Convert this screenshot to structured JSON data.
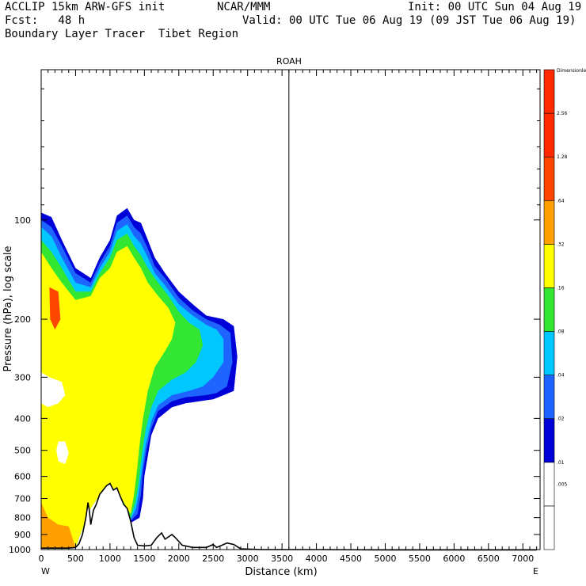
{
  "header": {
    "line1_left": "ACCLIP 15km ARW-GFS init",
    "line1_center": "NCAR/MMM",
    "line1_right": "Init: 00 UTC Sun 04 Aug 19",
    "line2_left": "Fcst:   48 h",
    "line2_right": "Valid: 00 UTC Tue 06 Aug 19 (09 JST Tue 06 Aug 19)",
    "line3_left": "Boundary Layer Tracer  Tibet Region"
  },
  "chart_data": {
    "type": "heatmap",
    "plot_type": "vertical cross-section, filled contours",
    "title": "ROAH",
    "xlabel": "Distance (km)",
    "ylabel": "Pressure (hPa), log scale",
    "x_left_label": "W",
    "x_right_label": "E",
    "xlim": [
      0,
      7250
    ],
    "ylim_hpa": [
      1000,
      35
    ],
    "y_scale": "log",
    "x_ticks": [
      0,
      500,
      1000,
      1500,
      2000,
      2500,
      3000,
      3500,
      4000,
      4500,
      5000,
      5500,
      6000,
      6500,
      7000
    ],
    "y_ticks": [
      100,
      200,
      300,
      400,
      500,
      600,
      700,
      800,
      900,
      1000
    ],
    "marker_line_km": 3600,
    "colorbar": {
      "units_label": "Dimensionless",
      "levels": [
        ".005",
        ".01",
        ".02",
        ".04",
        ".08",
        ".16",
        ".32",
        ".64",
        "1.28",
        "2.56"
      ],
      "colors": [
        "#ffffff",
        "#0000d8",
        "#1e64ff",
        "#00c8ff",
        "#32e632",
        "#ffff00",
        "#ffa000",
        "#ff4600"
      ]
    },
    "terrain_surface": [
      {
        "km": 0,
        "hpa": 990
      },
      {
        "km": 100,
        "hpa": 990
      },
      {
        "km": 250,
        "hpa": 990
      },
      {
        "km": 400,
        "hpa": 990
      },
      {
        "km": 500,
        "hpa": 985
      },
      {
        "km": 550,
        "hpa": 960
      },
      {
        "km": 600,
        "hpa": 900
      },
      {
        "km": 650,
        "hpa": 800
      },
      {
        "km": 680,
        "hpa": 720
      },
      {
        "km": 700,
        "hpa": 760
      },
      {
        "km": 720,
        "hpa": 840
      },
      {
        "km": 760,
        "hpa": 760
      },
      {
        "km": 800,
        "hpa": 730
      },
      {
        "km": 850,
        "hpa": 680
      },
      {
        "km": 900,
        "hpa": 660
      },
      {
        "km": 950,
        "hpa": 640
      },
      {
        "km": 1000,
        "hpa": 630
      },
      {
        "km": 1050,
        "hpa": 660
      },
      {
        "km": 1100,
        "hpa": 650
      },
      {
        "km": 1150,
        "hpa": 690
      },
      {
        "km": 1200,
        "hpa": 730
      },
      {
        "km": 1250,
        "hpa": 750
      },
      {
        "km": 1300,
        "hpa": 820
      },
      {
        "km": 1350,
        "hpa": 920
      },
      {
        "km": 1400,
        "hpa": 970
      },
      {
        "km": 1500,
        "hpa": 975
      },
      {
        "km": 1600,
        "hpa": 970
      },
      {
        "km": 1680,
        "hpa": 920
      },
      {
        "km": 1750,
        "hpa": 890
      },
      {
        "km": 1800,
        "hpa": 930
      },
      {
        "km": 1900,
        "hpa": 900
      },
      {
        "km": 1950,
        "hpa": 920
      },
      {
        "km": 2050,
        "hpa": 970
      },
      {
        "km": 2200,
        "hpa": 985
      },
      {
        "km": 2400,
        "hpa": 985
      },
      {
        "km": 2500,
        "hpa": 965
      },
      {
        "km": 2550,
        "hpa": 985
      },
      {
        "km": 2650,
        "hpa": 965
      },
      {
        "km": 2700,
        "hpa": 955
      },
      {
        "km": 2800,
        "hpa": 965
      },
      {
        "km": 2900,
        "hpa": 995
      },
      {
        "km": 3200,
        "hpa": 1000
      },
      {
        "km": 4000,
        "hpa": 1000
      },
      {
        "km": 5000,
        "hpa": 1003
      },
      {
        "km": 6000,
        "hpa": 1003
      },
      {
        "km": 7200,
        "hpa": 1003
      }
    ],
    "tracer_regions": [
      {
        "level": ".01",
        "color": "#0000d8",
        "pts": [
          [
            0,
            985
          ],
          [
            0,
            95
          ],
          [
            150,
            98
          ],
          [
            300,
            115
          ],
          [
            500,
            140
          ],
          [
            720,
            150
          ],
          [
            850,
            130
          ],
          [
            1000,
            115
          ],
          [
            1100,
            97
          ],
          [
            1250,
            92
          ],
          [
            1350,
            100
          ],
          [
            1450,
            102
          ],
          [
            1550,
            115
          ],
          [
            1650,
            130
          ],
          [
            1800,
            145
          ],
          [
            2000,
            165
          ],
          [
            2200,
            180
          ],
          [
            2400,
            195
          ],
          [
            2650,
            200
          ],
          [
            2800,
            210
          ],
          [
            2850,
            260
          ],
          [
            2800,
            330
          ],
          [
            2650,
            340
          ],
          [
            2500,
            350
          ],
          [
            2100,
            360
          ],
          [
            1900,
            370
          ],
          [
            1700,
            400
          ],
          [
            1600,
            450
          ],
          [
            1550,
            520
          ],
          [
            1500,
            600
          ],
          [
            1480,
            700
          ],
          [
            1430,
            800
          ],
          [
            1300,
            830
          ],
          [
            1150,
            690
          ],
          [
            900,
            660
          ],
          [
            700,
            760
          ],
          [
            500,
            985
          ]
        ]
      },
      {
        "level": ".02",
        "color": "#1e64ff",
        "pts": [
          [
            0,
            985
          ],
          [
            0,
            100
          ],
          [
            150,
            105
          ],
          [
            300,
            120
          ],
          [
            500,
            145
          ],
          [
            720,
            155
          ],
          [
            850,
            135
          ],
          [
            1000,
            120
          ],
          [
            1100,
            102
          ],
          [
            1250,
            97
          ],
          [
            1350,
            105
          ],
          [
            1450,
            110
          ],
          [
            1550,
            122
          ],
          [
            1650,
            138
          ],
          [
            1800,
            150
          ],
          [
            2000,
            172
          ],
          [
            2200,
            188
          ],
          [
            2400,
            200
          ],
          [
            2600,
            208
          ],
          [
            2750,
            220
          ],
          [
            2780,
            270
          ],
          [
            2700,
            320
          ],
          [
            2550,
            335
          ],
          [
            2400,
            340
          ],
          [
            2100,
            345
          ],
          [
            1900,
            355
          ],
          [
            1700,
            380
          ],
          [
            1600,
            430
          ],
          [
            1530,
            500
          ],
          [
            1480,
            580
          ],
          [
            1450,
            680
          ],
          [
            1400,
            780
          ],
          [
            1300,
            820
          ],
          [
            1150,
            690
          ],
          [
            900,
            660
          ],
          [
            700,
            760
          ],
          [
            500,
            985
          ]
        ]
      },
      {
        "level": ".04",
        "color": "#00c8ff",
        "pts": [
          [
            0,
            985
          ],
          [
            0,
            105
          ],
          [
            150,
            112
          ],
          [
            300,
            130
          ],
          [
            500,
            155
          ],
          [
            720,
            160
          ],
          [
            850,
            140
          ],
          [
            1000,
            125
          ],
          [
            1100,
            108
          ],
          [
            1250,
            103
          ],
          [
            1350,
            112
          ],
          [
            1450,
            118
          ],
          [
            1550,
            130
          ],
          [
            1650,
            145
          ],
          [
            1800,
            158
          ],
          [
            2000,
            180
          ],
          [
            2200,
            195
          ],
          [
            2400,
            208
          ],
          [
            2550,
            215
          ],
          [
            2650,
            230
          ],
          [
            2650,
            270
          ],
          [
            2500,
            300
          ],
          [
            2350,
            320
          ],
          [
            2150,
            330
          ],
          [
            1900,
            340
          ],
          [
            1700,
            365
          ],
          [
            1600,
            410
          ],
          [
            1520,
            480
          ],
          [
            1470,
            560
          ],
          [
            1430,
            650
          ],
          [
            1380,
            750
          ],
          [
            1300,
            810
          ],
          [
            1150,
            690
          ],
          [
            900,
            660
          ],
          [
            700,
            760
          ],
          [
            500,
            985
          ]
        ]
      },
      {
        "level": ".08",
        "color": "#32e632",
        "pts": [
          [
            0,
            985
          ],
          [
            0,
            115
          ],
          [
            150,
            125
          ],
          [
            300,
            140
          ],
          [
            500,
            165
          ],
          [
            720,
            165
          ],
          [
            850,
            145
          ],
          [
            1000,
            130
          ],
          [
            1100,
            115
          ],
          [
            1250,
            110
          ],
          [
            1350,
            120
          ],
          [
            1450,
            128
          ],
          [
            1550,
            140
          ],
          [
            1700,
            155
          ],
          [
            1850,
            170
          ],
          [
            2000,
            190
          ],
          [
            2150,
            205
          ],
          [
            2300,
            215
          ],
          [
            2350,
            240
          ],
          [
            2250,
            270
          ],
          [
            2100,
            290
          ],
          [
            1900,
            305
          ],
          [
            1700,
            330
          ],
          [
            1600,
            370
          ],
          [
            1520,
            430
          ],
          [
            1460,
            520
          ],
          [
            1420,
            620
          ],
          [
            1370,
            720
          ],
          [
            1300,
            800
          ],
          [
            1150,
            690
          ],
          [
            900,
            660
          ],
          [
            700,
            760
          ],
          [
            500,
            985
          ]
        ]
      },
      {
        "level": ".16",
        "color": "#ffff00",
        "pts": [
          [
            0,
            985
          ],
          [
            0,
            125
          ],
          [
            150,
            140
          ],
          [
            300,
            155
          ],
          [
            500,
            175
          ],
          [
            720,
            170
          ],
          [
            850,
            150
          ],
          [
            1000,
            140
          ],
          [
            1100,
            125
          ],
          [
            1250,
            120
          ],
          [
            1350,
            130
          ],
          [
            1450,
            140
          ],
          [
            1550,
            155
          ],
          [
            1700,
            170
          ],
          [
            1850,
            185
          ],
          [
            1950,
            205
          ],
          [
            1900,
            230
          ],
          [
            1800,
            250
          ],
          [
            1650,
            280
          ],
          [
            1550,
            330
          ],
          [
            1480,
            400
          ],
          [
            1430,
            480
          ],
          [
            1390,
            580
          ],
          [
            1350,
            680
          ],
          [
            1300,
            780
          ],
          [
            1150,
            690
          ],
          [
            900,
            660
          ],
          [
            700,
            760
          ],
          [
            500,
            985
          ]
        ]
      },
      {
        "level": ".32",
        "color": "#ffa000",
        "pts": [
          [
            0,
            990
          ],
          [
            0,
            720
          ],
          [
            100,
            800
          ],
          [
            250,
            840
          ],
          [
            400,
            850
          ],
          [
            500,
            985
          ]
        ]
      },
      {
        "level": ".64",
        "color": "#ff4600",
        "pts": [
          [
            120,
            160
          ],
          [
            250,
            165
          ],
          [
            280,
            200
          ],
          [
            200,
            215
          ],
          [
            130,
            200
          ]
        ]
      }
    ],
    "clear_holes": [
      {
        "level": "<.005",
        "pts": [
          [
            0,
            290
          ],
          [
            120,
            300
          ],
          [
            300,
            310
          ],
          [
            350,
            340
          ],
          [
            250,
            360
          ],
          [
            100,
            370
          ],
          [
            0,
            360
          ]
        ]
      },
      {
        "level": "<.005",
        "pts": [
          [
            250,
            470
          ],
          [
            350,
            470
          ],
          [
            400,
            510
          ],
          [
            350,
            550
          ],
          [
            250,
            540
          ],
          [
            220,
            500
          ]
        ]
      }
    ]
  }
}
